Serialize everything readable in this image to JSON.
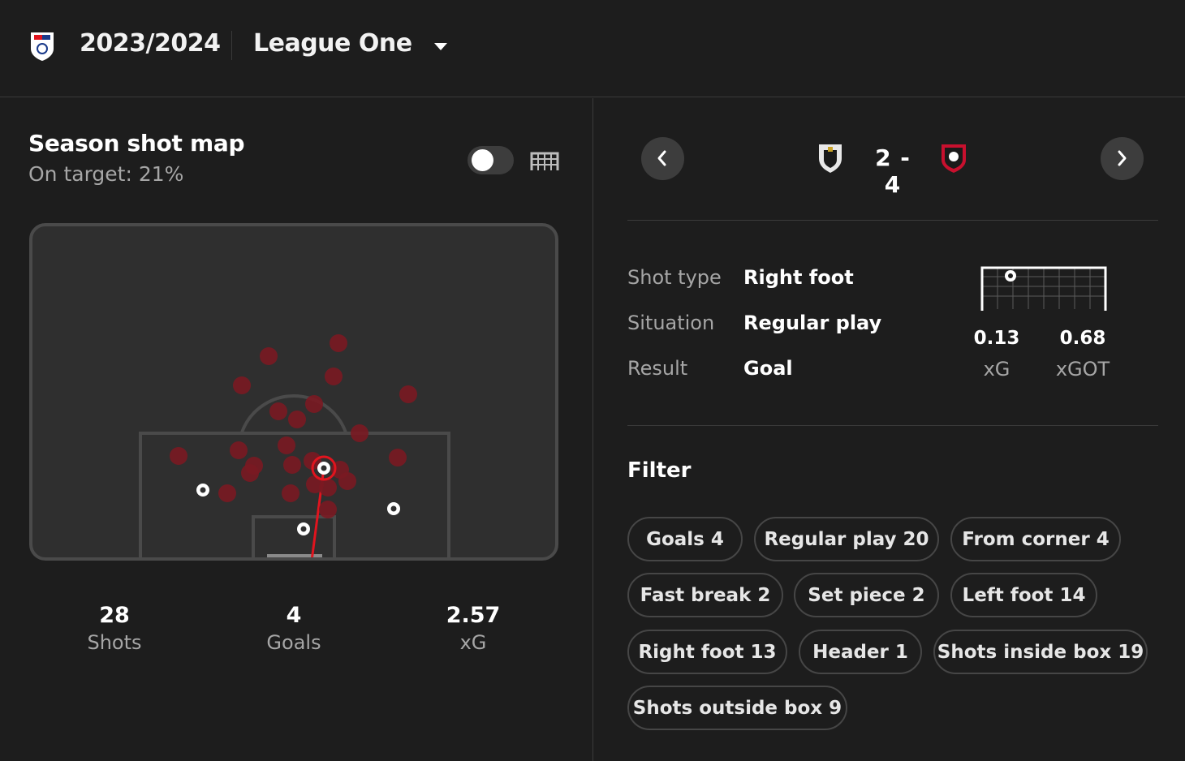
{
  "header": {
    "season": "2023/2024",
    "league": "League One",
    "league_icon": "league-crest-icon",
    "caret_icon": "caret-down-icon"
  },
  "shotmap": {
    "title": "Season shot map",
    "on_target": "On target: 21%",
    "stats": [
      {
        "value": "28",
        "label": "Shots"
      },
      {
        "value": "4",
        "label": "Goals"
      },
      {
        "value": "2.57",
        "label": "xG"
      }
    ],
    "colors": {
      "miss": "#7a1a22",
      "selected": "#e0141e",
      "goal": "#ffffff"
    }
  },
  "match": {
    "score": "2 - 4",
    "home_crest": "port-vale-crest-icon",
    "away_crest": "exeter-city-crest-icon",
    "details": [
      {
        "label": "Shot type",
        "value": "Right foot"
      },
      {
        "label": "Situation",
        "value": "Regular play"
      },
      {
        "label": "Result",
        "value": "Goal"
      }
    ],
    "xg": {
      "value": "0.13",
      "label": "xG"
    },
    "xgot": {
      "value": "0.68",
      "label": "xGOT"
    }
  },
  "filter": {
    "title": "Filter",
    "chips": [
      {
        "label": "Goals",
        "count": "4"
      },
      {
        "label": "Regular play",
        "count": "20"
      },
      {
        "label": "From corner",
        "count": "4"
      },
      {
        "label": "Fast break",
        "count": "2"
      },
      {
        "label": "Set piece",
        "count": "2"
      },
      {
        "label": "Left foot",
        "count": "14"
      },
      {
        "label": "Right foot",
        "count": "13"
      },
      {
        "label": "Header",
        "count": "1"
      },
      {
        "label": "Shots inside box",
        "count": "19"
      },
      {
        "label": "Shots outside box",
        "count": "9"
      }
    ]
  }
}
